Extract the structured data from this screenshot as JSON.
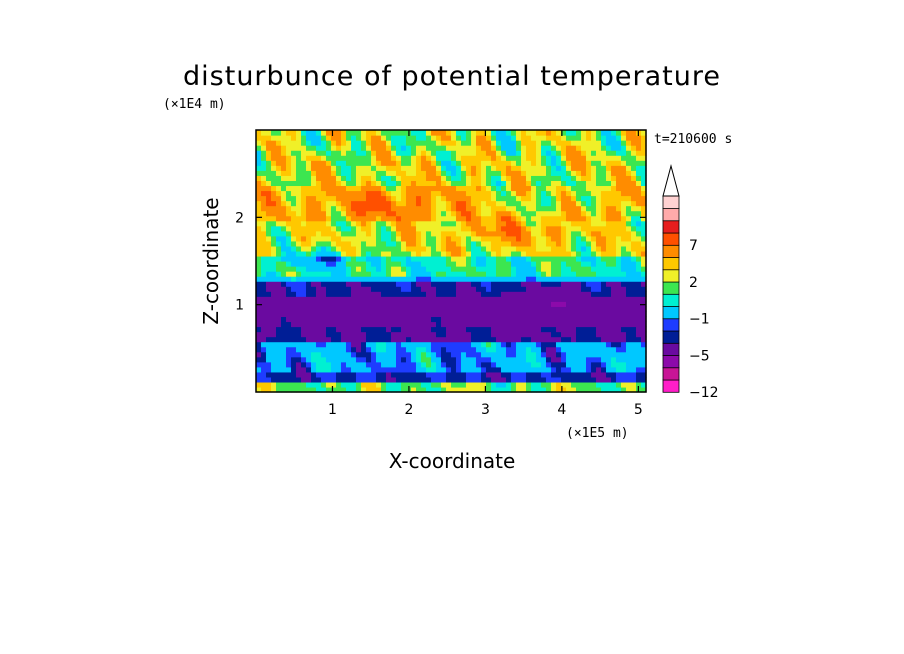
{
  "chart_data": {
    "type": "heatmap",
    "title": "disturbunce of potential temperature",
    "xlabel": "X-coordinate",
    "ylabel": "Z-coordinate",
    "x_unit": "(×1E5 m)",
    "y_unit": "(×1E4 m)",
    "time_label": "t=210600 s",
    "x_ticks": [
      "1",
      "2",
      "3",
      "4",
      "5"
    ],
    "y_ticks": [
      "1",
      "2"
    ],
    "xlim": [
      0,
      5.1
    ],
    "ylim": [
      0,
      3.0
    ],
    "colorbar": {
      "tick_labels": [
        "7",
        "2",
        "−1",
        "−5",
        "−12"
      ],
      "levels": [
        -12,
        -10,
        -8,
        -5,
        -4,
        -3,
        -1,
        0,
        1,
        2,
        3,
        5,
        7,
        8,
        9
      ],
      "colors": [
        "#ff1ec8",
        "#c81496",
        "#8c0aaa",
        "#6a0aa0",
        "#001e96",
        "#1e3cff",
        "#00c8ff",
        "#00f0d2",
        "#3ce650",
        "#f0f028",
        "#ffc800",
        "#ff8c00",
        "#ff5000",
        "#e61e1e",
        "#ffaaaa",
        "#ffd2d2"
      ]
    }
  }
}
